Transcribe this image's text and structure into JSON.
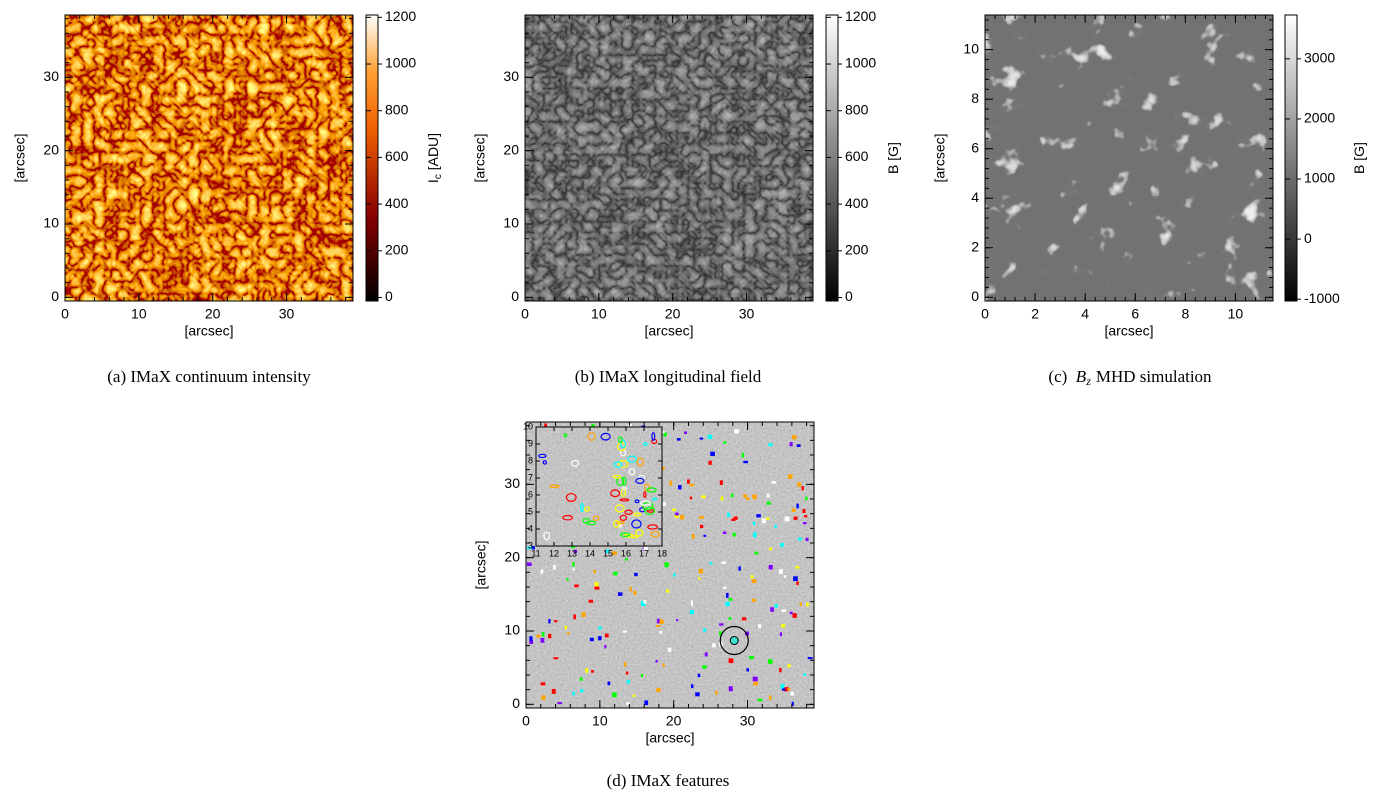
{
  "chart_data": [
    {
      "type": "image",
      "xlim": [
        0,
        39
      ],
      "ylim": [
        -0.5,
        38.5
      ],
      "xticks": [
        0,
        10,
        20,
        30
      ],
      "yticks": [
        0,
        10,
        20,
        30
      ],
      "xlabel": "[arcsec]",
      "ylabel": "[arcsec]",
      "colorbar": {
        "clim": [
          -15,
          1210
        ],
        "ticks": [
          0,
          200,
          400,
          600,
          800,
          1000,
          1200
        ],
        "label": {
          "base": "I",
          "sub": "c",
          "rest": " [ADU]"
        }
      },
      "caption": "(a) IMaX continuum intensity"
    },
    {
      "type": "image",
      "xlim": [
        0,
        39
      ],
      "ylim": [
        -0.5,
        38.5
      ],
      "xticks": [
        0,
        10,
        20,
        30
      ],
      "yticks": [
        0,
        10,
        20,
        30
      ],
      "xlabel": "[arcsec]",
      "ylabel": "[arcsec]",
      "colorbar": {
        "clim": [
          -15,
          1210
        ],
        "ticks": [
          0,
          200,
          400,
          600,
          800,
          1000,
          1200
        ],
        "label": {
          "base": "B [G]"
        }
      },
      "caption": "(b) IMaX longitudinal field"
    },
    {
      "type": "image",
      "xlim": [
        0,
        11.5
      ],
      "ylim": [
        -0.15,
        11.4
      ],
      "xticks": [
        0,
        2,
        4,
        6,
        8,
        10
      ],
      "yticks": [
        0,
        2,
        4,
        6,
        8,
        10
      ],
      "xlabel": "[arcsec]",
      "ylabel": "[arcsec]",
      "colorbar": {
        "clim": [
          -1030,
          3730
        ],
        "ticks": [
          -1000,
          0,
          1000,
          2000,
          3000
        ],
        "label": {
          "base": "B [G]"
        }
      },
      "caption": {
        "label": "(c)",
        "base": "B",
        "sub": "z",
        "text": "MHD simulation"
      }
    },
    {
      "type": "image",
      "xlim": [
        0,
        39
      ],
      "ylim": [
        -0.5,
        38.5
      ],
      "xticks": [
        0,
        10,
        20,
        30
      ],
      "yticks": [
        0,
        10,
        20,
        30
      ],
      "xlabel": "[arcsec]",
      "ylabel": "[arcsec]",
      "inset": {
        "xlim": [
          11,
          18
        ],
        "ylim": [
          3,
          10
        ],
        "xticks": [
          11,
          12,
          13,
          14,
          15,
          16,
          17,
          18
        ],
        "yticks": [
          3,
          4,
          5,
          6,
          7,
          8,
          9,
          10
        ]
      },
      "marker": {
        "x": 28.2,
        "y": 8.7
      },
      "caption": "(d) IMaX features"
    }
  ]
}
